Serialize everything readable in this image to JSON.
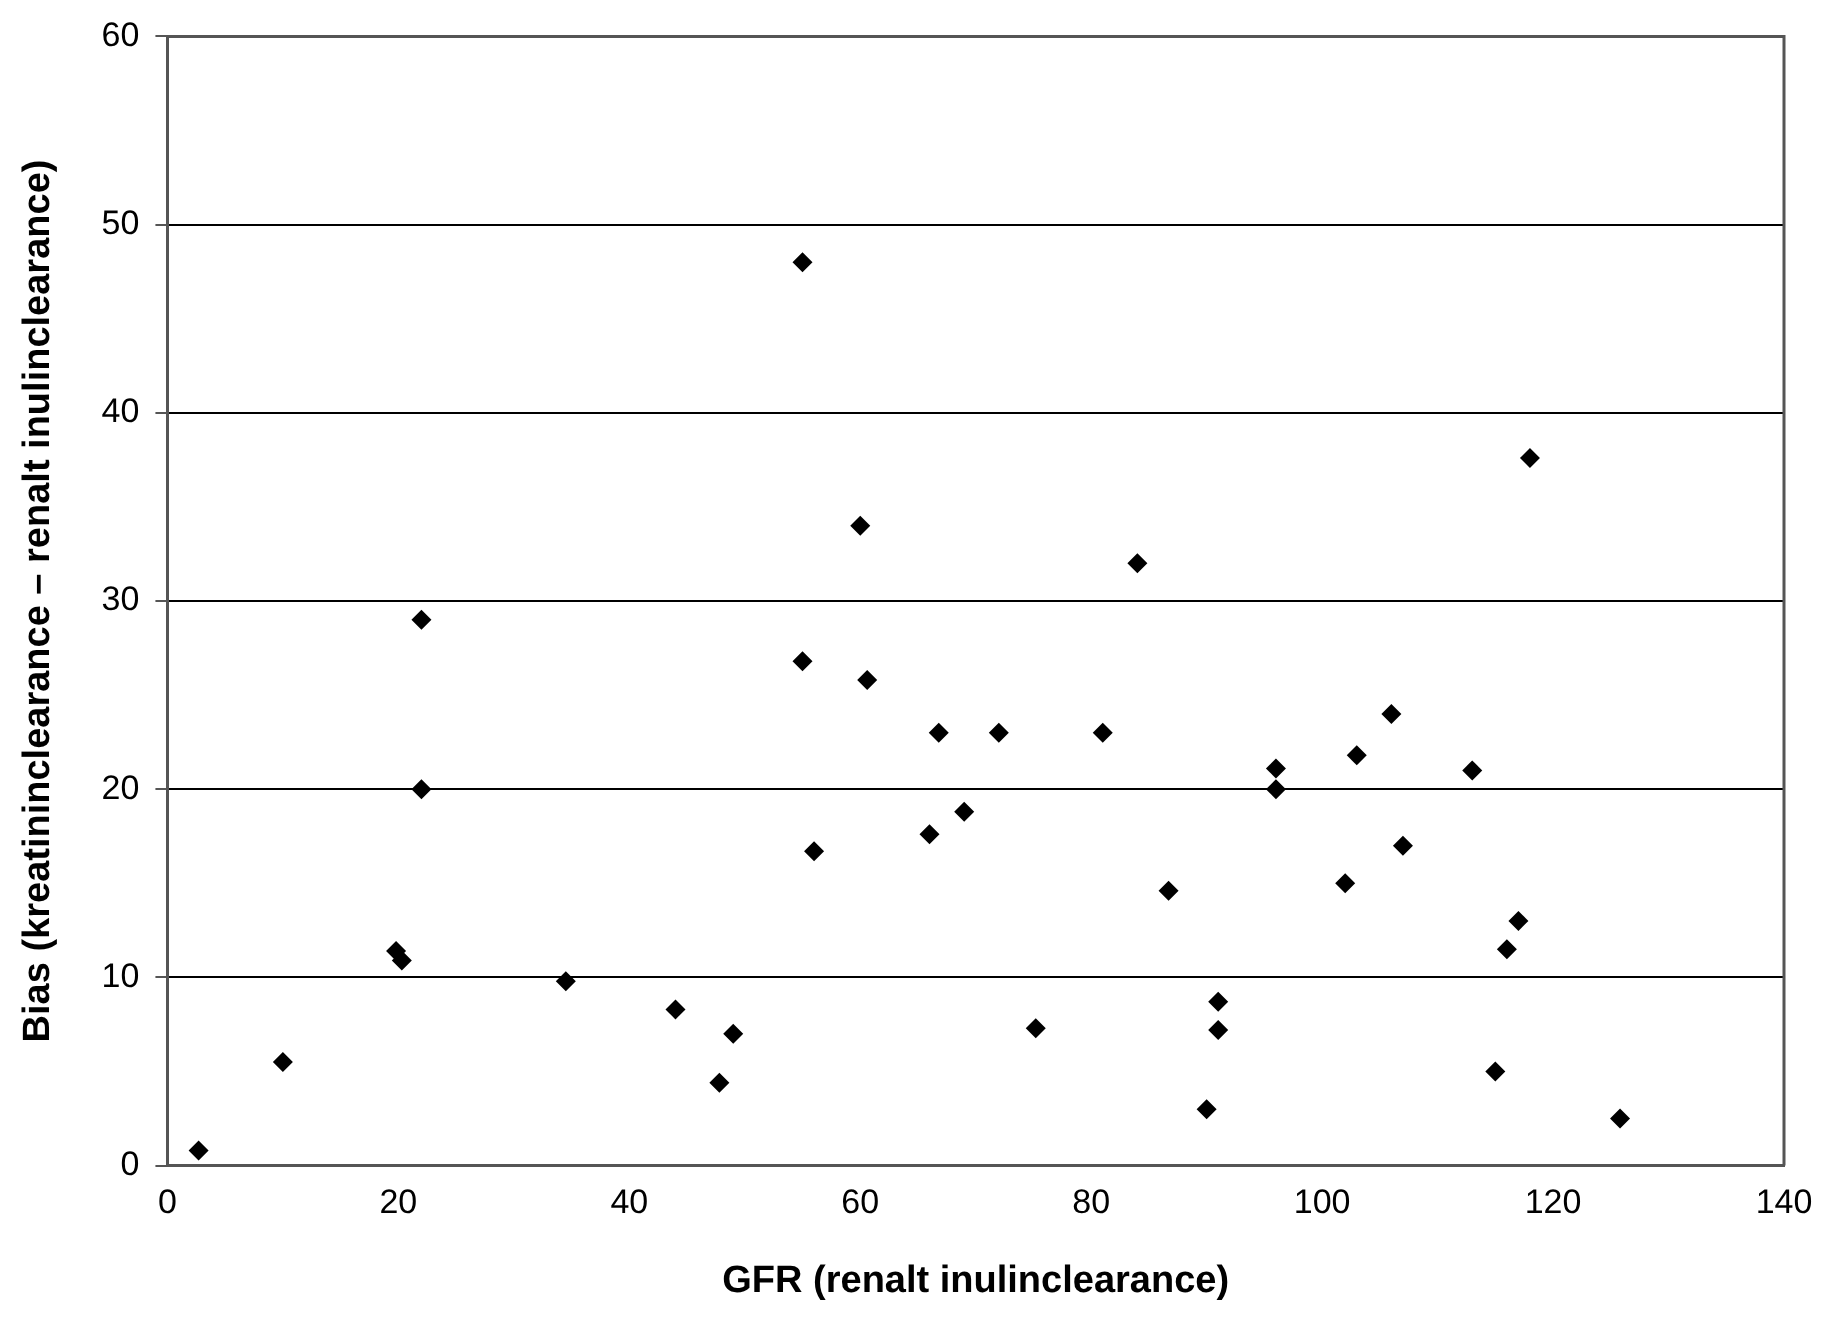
{
  "chart_data": {
    "type": "scatter",
    "xlabel": "GFR (renalt inulinclearance)",
    "ylabel": "Bias (kreatininclearance – renalt inulinclearance)",
    "x": [
      2.7,
      10,
      19.8,
      20.3,
      22,
      22,
      34.5,
      44,
      47.8,
      49,
      55,
      55,
      56,
      60,
      60.6,
      66,
      66.8,
      69,
      72,
      75.2,
      81,
      84,
      86.7,
      90,
      91,
      91,
      96,
      96,
      102,
      103,
      106,
      107,
      113,
      115,
      116,
      117,
      118,
      125.8
    ],
    "values": [
      0.8,
      5.5,
      11.4,
      10.9,
      29,
      20,
      9.8,
      8.3,
      4.4,
      7,
      48,
      26.8,
      16.7,
      34,
      25.8,
      17.6,
      23,
      18.8,
      23,
      7.3,
      23,
      32,
      14.6,
      3,
      8.7,
      7.2,
      21.1,
      20,
      15,
      21.8,
      24,
      17,
      21,
      5,
      11.5,
      13,
      37.6,
      2.5
    ],
    "color": "#000000",
    "marker": "diamond",
    "xlim": [
      0,
      140
    ],
    "xticks": [
      0,
      20,
      40,
      60,
      80,
      100,
      120,
      140
    ],
    "ylim": [
      0,
      60
    ],
    "yticks": [
      0,
      10,
      20,
      30,
      40,
      50,
      60
    ],
    "grid": "y",
    "legend": false
  }
}
